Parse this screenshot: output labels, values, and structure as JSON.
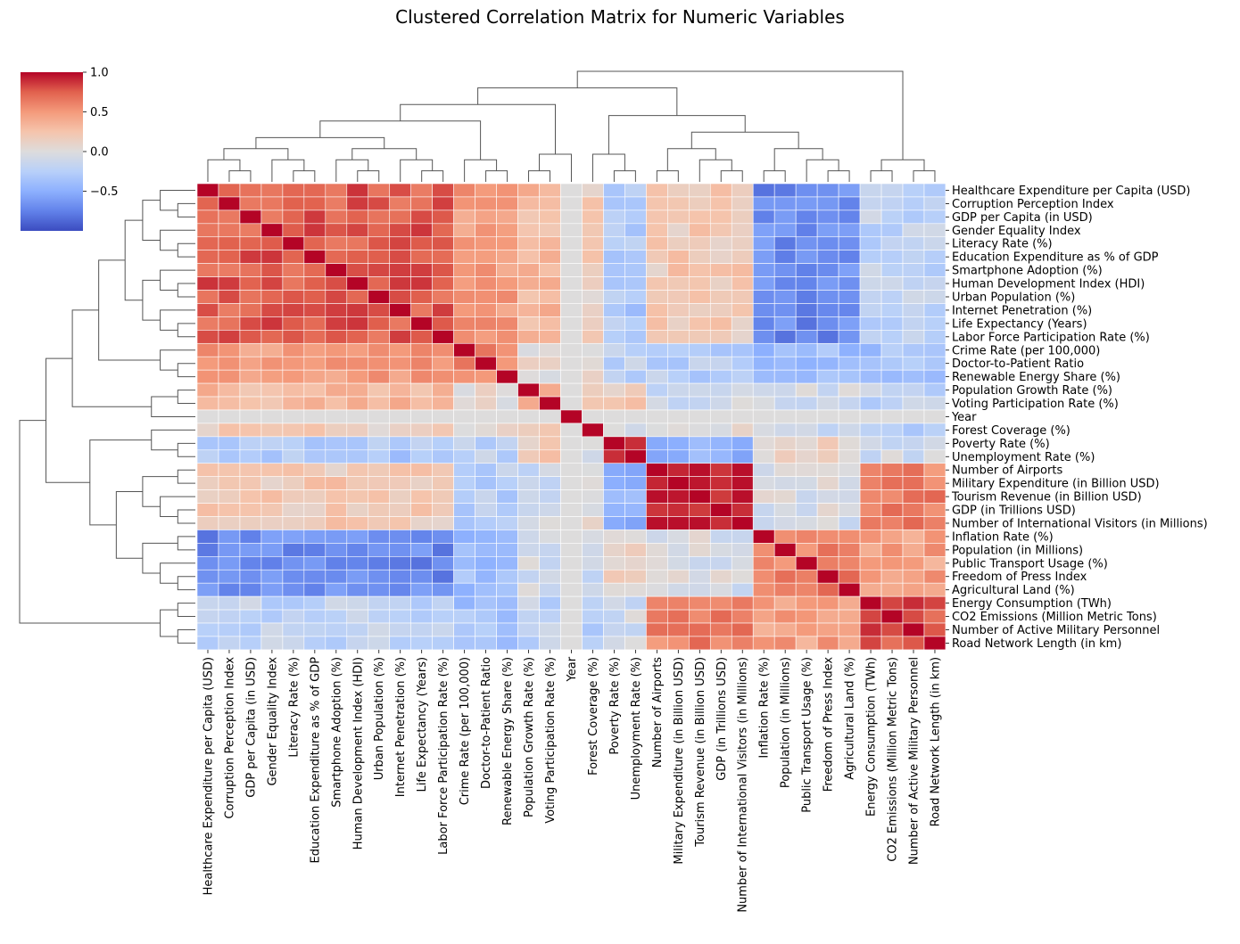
{
  "chart_data": {
    "type": "heatmap",
    "title": "Clustered Correlation Matrix for Numeric Variables",
    "colormap": "coolwarm",
    "vmin": -1,
    "vmax": 1,
    "colorbar_ticks": [
      "1.0",
      "0.5",
      "0.0",
      "−0.5"
    ],
    "colorbar_tick_values": [
      1.0,
      0.5,
      0.0,
      -0.5
    ],
    "colorbar_placement": "top-left",
    "grid_lines": "white",
    "dendrograms": [
      "top",
      "left"
    ],
    "labels": [
      "Healthcare Expenditure per Capita (USD)",
      "Corruption Perception Index",
      "GDP per Capita (in USD)",
      "Gender Equality Index",
      "Literacy Rate (%)",
      "Education Expenditure as % of GDP",
      "Smartphone Adoption (%)",
      "Human Development Index (HDI)",
      "Urban Population (%)",
      "Internet Penetration (%)",
      "Life Expectancy (Years)",
      "Labor Force Participation Rate (%)",
      "Crime Rate (per 100,000)",
      "Doctor-to-Patient Ratio",
      "Renewable Energy Share (%)",
      "Population Growth Rate (%)",
      "Voting Participation Rate (%)",
      "Year",
      "Forest Coverage (%)",
      "Poverty Rate (%)",
      "Unemployment Rate (%)",
      "Number of Airports",
      "Military Expenditure (in Billion USD)",
      "Tourism Revenue (in Billion USD)",
      "GDP (in Trillions USD)",
      "Number of International Visitors (in Millions)",
      "Inflation Rate (%)",
      "Population (in Millions)",
      "Public Transport Usage (%)",
      "Freedom of Press Index",
      "Agricultural Land (%)",
      "Energy Consumption (TWh)",
      "CO2 Emissions (Million Metric Tons)",
      "Number of Active Military Personnel",
      "Road Network Length (in km)"
    ],
    "groups": [
      0,
      0,
      0,
      0,
      0,
      0,
      0,
      0,
      0,
      0,
      0,
      0,
      1,
      1,
      1,
      2,
      2,
      3,
      4,
      5,
      5,
      6,
      6,
      6,
      6,
      6,
      7,
      7,
      7,
      7,
      7,
      8,
      8,
      8,
      8
    ],
    "group_correlation": [
      [
        0.75,
        0.5,
        0.3,
        0.0,
        0.15,
        -0.3,
        0.2,
        -0.7,
        -0.2
      ],
      [
        0.5,
        0.6,
        0.05,
        0.0,
        0.05,
        -0.2,
        -0.25,
        -0.4,
        -0.35
      ],
      [
        0.3,
        0.05,
        0.4,
        0.0,
        0.1,
        0.2,
        -0.1,
        -0.1,
        -0.2
      ],
      [
        0.0,
        0.0,
        0.0,
        1.0,
        0.0,
        0.0,
        0.0,
        0.0,
        0.0
      ],
      [
        0.15,
        0.05,
        0.1,
        0.0,
        1.0,
        0.0,
        0.0,
        -0.15,
        -0.3
      ],
      [
        -0.3,
        -0.2,
        0.2,
        0.0,
        0.0,
        0.8,
        -0.45,
        0.1,
        -0.1
      ],
      [
        0.2,
        -0.25,
        -0.1,
        0.0,
        0.0,
        -0.45,
        0.92,
        -0.05,
        0.6
      ],
      [
        -0.7,
        -0.4,
        -0.1,
        0.0,
        -0.15,
        0.1,
        -0.05,
        0.6,
        0.45
      ],
      [
        -0.2,
        -0.35,
        -0.2,
        0.0,
        -0.3,
        -0.1,
        0.6,
        0.45,
        0.8
      ]
    ]
  }
}
